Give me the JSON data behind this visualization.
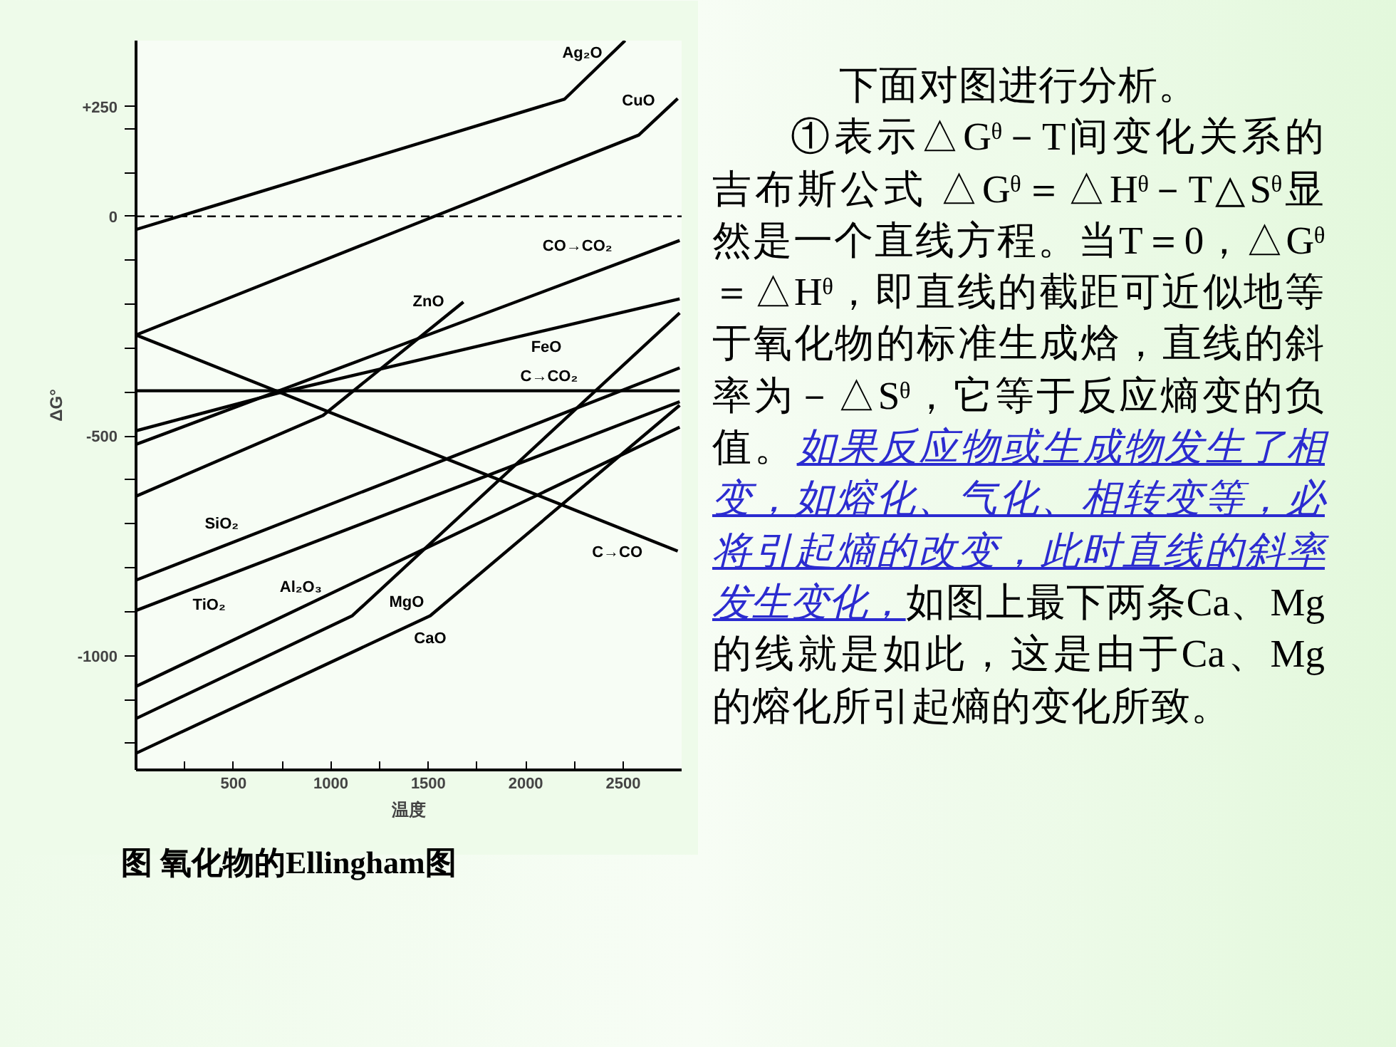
{
  "chart_data": {
    "type": "line",
    "xlabel": "温度",
    "ylabel": "ΔG°",
    "xlim": [
      0,
      2800
    ],
    "ylim": [
      -1260,
      400
    ],
    "xticks": [
      {
        "value": 250,
        "label": null
      },
      500,
      {
        "value": 750,
        "label": null
      },
      1000,
      {
        "value": 1250,
        "label": null
      },
      1500,
      {
        "value": 1750,
        "label": null
      },
      2000,
      {
        "value": 2250,
        "label": null
      },
      2500
    ],
    "yticks": [
      {
        "value": 250,
        "label": "+250"
      },
      {
        "value": 200,
        "label": null
      },
      {
        "value": 100,
        "label": null
      },
      0,
      {
        "value": -100,
        "label": null
      },
      {
        "value": -200,
        "label": null
      },
      {
        "value": -300,
        "label": null
      },
      {
        "value": -400,
        "label": null
      },
      -500,
      {
        "value": -600,
        "label": null
      },
      {
        "value": -700,
        "label": null
      },
      {
        "value": -800,
        "label": null
      },
      {
        "value": -900,
        "label": null
      },
      -1000,
      {
        "value": -1100,
        "label": null
      },
      {
        "value": -1200,
        "label": null
      }
    ],
    "grid": false,
    "marker": "none",
    "line_style": "solid",
    "series": [
      {
        "name": "Ag₂O",
        "color": "#000000",
        "x": [
          0,
          2200,
          2510
        ],
        "values": [
          -30,
          267,
          400
        ]
      },
      {
        "name": "CuO",
        "color": "#000000",
        "x": [
          0,
          2580,
          2780
        ],
        "values": [
          -270,
          185,
          268
        ]
      },
      {
        "name": "CO→CO₂",
        "color": "#000000",
        "x": [
          0,
          2790
        ],
        "values": [
          -519,
          -55
        ]
      },
      {
        "name": "ZnO",
        "color": "#000000",
        "x": [
          0,
          960,
          1680
        ],
        "values": [
          -637,
          -453,
          -195
        ]
      },
      {
        "name": "FeO",
        "color": "#000000",
        "x": [
          0,
          750,
          2790
        ],
        "values": [
          -488,
          -400,
          -188
        ]
      },
      {
        "name": "C→CO₂",
        "color": "#000000",
        "x": [
          0,
          2790
        ],
        "values": [
          -397,
          -397
        ]
      },
      {
        "name": "C→CO",
        "color": "#000000",
        "x": [
          0,
          2780
        ],
        "values": [
          -270,
          -762
        ]
      },
      {
        "name": "SiO₂",
        "color": "#000000",
        "x": [
          0,
          2790
        ],
        "values": [
          -828,
          -345
        ]
      },
      {
        "name": "TiO₂",
        "color": "#000000",
        "x": [
          0,
          2790
        ],
        "values": [
          -897,
          -422
        ]
      },
      {
        "name": "Al₂O₃",
        "color": "#000000",
        "x": [
          0,
          2790
        ],
        "values": [
          -1070,
          -480
        ]
      },
      {
        "name": "MgO",
        "color": "#000000",
        "x": [
          0,
          1110,
          2790
        ],
        "values": [
          -1143,
          -909,
          -220
        ]
      },
      {
        "name": "CaO",
        "color": "#000000",
        "x": [
          0,
          1510,
          2790
        ],
        "values": [
          -1222,
          -909,
          -430
        ]
      }
    ],
    "ref_lines": [
      {
        "axis": "y",
        "value": 0,
        "label": null,
        "color": "#000000",
        "line_style": "dashed"
      }
    ],
    "annotations": [
      "图 氧化物的Ellingham图",
      "下面对图进行分析。",
      "①表示△Gᶿ－T间变化关系的吉布斯公式 △Gᶿ＝△Hᶿ－T△Sᶿ显然是一个直线方程。当T＝0，△Gᶿ＝△Hᶿ，即直线的截距可近似地等于氧化物的标准生成焓，直线的斜率为－△Sᶿ，它等于反应熵变的负值。",
      "如果反应物或生成物发生了相变，如熔化、气化、相转变等，必将引起熵的改变，此时直线的斜率发生变化，",
      "如图上最下两条Ca、Mg的线就是如此，这是由于Ca、Mg的熔化所引起熵的变化所致。"
    ]
  }
}
